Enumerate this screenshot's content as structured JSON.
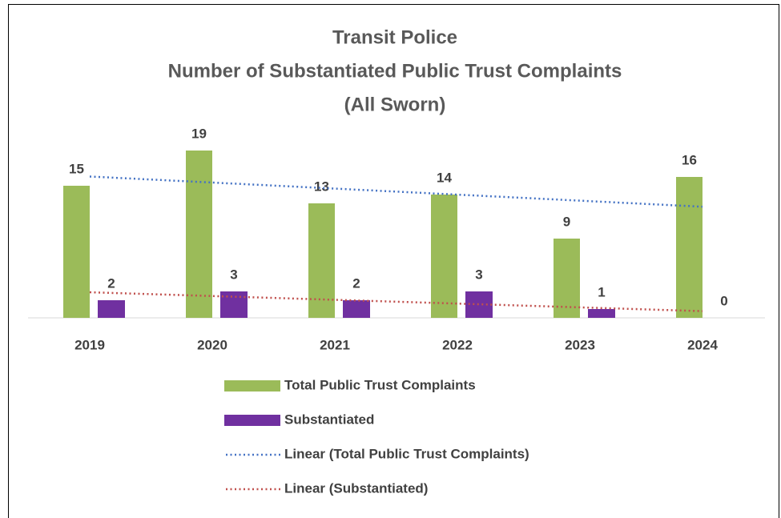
{
  "chart_data": {
    "type": "bar",
    "title": [
      "Transit Police",
      "Number of Substantiated Public Trust Complaints",
      "(All Sworn)"
    ],
    "categories": [
      "2019",
      "2020",
      "2021",
      "2022",
      "2023",
      "2024"
    ],
    "series": [
      {
        "name": "Total Public Trust Complaints",
        "color": "#9bbb59",
        "values": [
          15,
          19,
          13,
          14,
          9,
          16
        ],
        "trendline": {
          "type": "linear",
          "name": "Linear (Total Public Trust Complaints)",
          "color": "#4472c4"
        }
      },
      {
        "name": "Substantiated",
        "color": "#7030a0",
        "values": [
          2,
          3,
          2,
          3,
          1,
          0
        ],
        "trendline": {
          "type": "linear",
          "name": "Linear (Substantiated)",
          "color": "#c0504d"
        }
      }
    ]
  }
}
